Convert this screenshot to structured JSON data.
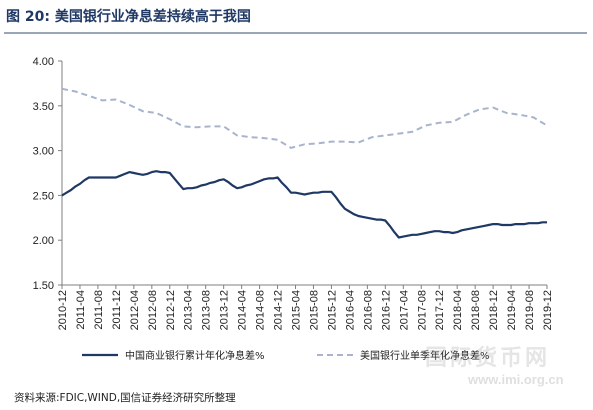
{
  "figure": {
    "title": "图 20:  美国银行业净息差持续高于我国",
    "source": "资料来源:FDIC,WIND,国信证券经济研究所整理",
    "watermark_text": "国际货币网",
    "watermark_url": "www.imi.org.cn"
  },
  "colors": {
    "china_series": "#1f3864",
    "us_series": "#a7b4cc",
    "title": "#1f3864"
  },
  "chart_data": {
    "type": "line",
    "title": "",
    "xlabel": "",
    "ylabel": "",
    "ylim": [
      1.5,
      4.0
    ],
    "yticks": [
      "1.50",
      "2.00",
      "2.50",
      "3.00",
      "3.50",
      "4.00"
    ],
    "x": [
      "2010-12",
      "2011-04",
      "2011-08",
      "2011-12",
      "2012-04",
      "2012-08",
      "2012-12",
      "2013-04",
      "2013-08",
      "2013-12",
      "2014-04",
      "2014-08",
      "2014-12",
      "2015-04",
      "2015-08",
      "2015-12",
      "2016-04",
      "2016-08",
      "2016-12",
      "2017-04",
      "2017-08",
      "2017-12",
      "2018-04",
      "2018-08",
      "2018-12",
      "2019-04",
      "2019-08",
      "2019-12"
    ],
    "legend_position": "bottom",
    "grid": false,
    "series": [
      {
        "name": "中国商业银行累计年化净息差%",
        "style": "solid",
        "points": [
          [
            "2010-12",
            2.5
          ],
          [
            "2011-01",
            2.53
          ],
          [
            "2011-02",
            2.56
          ],
          [
            "2011-03",
            2.6
          ],
          [
            "2011-04",
            2.63
          ],
          [
            "2011-05",
            2.67
          ],
          [
            "2011-06",
            2.7
          ],
          [
            "2011-07",
            2.7
          ],
          [
            "2011-08",
            2.7
          ],
          [
            "2011-09",
            2.7
          ],
          [
            "2011-10",
            2.7
          ],
          [
            "2011-11",
            2.7
          ],
          [
            "2011-12",
            2.7
          ],
          [
            "2012-01",
            2.72
          ],
          [
            "2012-02",
            2.74
          ],
          [
            "2012-03",
            2.76
          ],
          [
            "2012-04",
            2.75
          ],
          [
            "2012-05",
            2.74
          ],
          [
            "2012-06",
            2.73
          ],
          [
            "2012-07",
            2.74
          ],
          [
            "2012-08",
            2.76
          ],
          [
            "2012-09",
            2.77
          ],
          [
            "2012-10",
            2.76
          ],
          [
            "2012-11",
            2.76
          ],
          [
            "2012-12",
            2.75
          ],
          [
            "2013-01",
            2.69
          ],
          [
            "2013-02",
            2.63
          ],
          [
            "2013-03",
            2.57
          ],
          [
            "2013-04",
            2.58
          ],
          [
            "2013-05",
            2.58
          ],
          [
            "2013-06",
            2.59
          ],
          [
            "2013-07",
            2.61
          ],
          [
            "2013-08",
            2.62
          ],
          [
            "2013-09",
            2.64
          ],
          [
            "2013-10",
            2.65
          ],
          [
            "2013-11",
            2.67
          ],
          [
            "2013-12",
            2.68
          ],
          [
            "2014-01",
            2.65
          ],
          [
            "2014-02",
            2.61
          ],
          [
            "2014-03",
            2.58
          ],
          [
            "2014-04",
            2.59
          ],
          [
            "2014-05",
            2.61
          ],
          [
            "2014-06",
            2.62
          ],
          [
            "2014-07",
            2.64
          ],
          [
            "2014-08",
            2.66
          ],
          [
            "2014-09",
            2.68
          ],
          [
            "2014-10",
            2.69
          ],
          [
            "2014-11",
            2.69
          ],
          [
            "2014-12",
            2.7
          ],
          [
            "2015-01",
            2.64
          ],
          [
            "2015-02",
            2.59
          ],
          [
            "2015-03",
            2.53
          ],
          [
            "2015-04",
            2.53
          ],
          [
            "2015-05",
            2.52
          ],
          [
            "2015-06",
            2.51
          ],
          [
            "2015-07",
            2.52
          ],
          [
            "2015-08",
            2.53
          ],
          [
            "2015-09",
            2.53
          ],
          [
            "2015-10",
            2.54
          ],
          [
            "2015-11",
            2.54
          ],
          [
            "2015-12",
            2.54
          ],
          [
            "2016-01",
            2.48
          ],
          [
            "2016-02",
            2.41
          ],
          [
            "2016-03",
            2.35
          ],
          [
            "2016-04",
            2.32
          ],
          [
            "2016-05",
            2.29
          ],
          [
            "2016-06",
            2.27
          ],
          [
            "2016-07",
            2.26
          ],
          [
            "2016-08",
            2.25
          ],
          [
            "2016-09",
            2.24
          ],
          [
            "2016-10",
            2.23
          ],
          [
            "2016-11",
            2.23
          ],
          [
            "2016-12",
            2.22
          ],
          [
            "2017-01",
            2.16
          ],
          [
            "2017-02",
            2.09
          ],
          [
            "2017-03",
            2.03
          ],
          [
            "2017-04",
            2.04
          ],
          [
            "2017-05",
            2.05
          ],
          [
            "2017-06",
            2.06
          ],
          [
            "2017-07",
            2.06
          ],
          [
            "2017-08",
            2.07
          ],
          [
            "2017-09",
            2.08
          ],
          [
            "2017-10",
            2.09
          ],
          [
            "2017-11",
            2.1
          ],
          [
            "2017-12",
            2.1
          ],
          [
            "2018-01",
            2.09
          ],
          [
            "2018-02",
            2.09
          ],
          [
            "2018-03",
            2.08
          ],
          [
            "2018-04",
            2.09
          ],
          [
            "2018-05",
            2.11
          ],
          [
            "2018-06",
            2.12
          ],
          [
            "2018-07",
            2.13
          ],
          [
            "2018-08",
            2.14
          ],
          [
            "2018-09",
            2.15
          ],
          [
            "2018-10",
            2.16
          ],
          [
            "2018-11",
            2.17
          ],
          [
            "2018-12",
            2.18
          ],
          [
            "2019-01",
            2.18
          ],
          [
            "2019-02",
            2.17
          ],
          [
            "2019-03",
            2.17
          ],
          [
            "2019-04",
            2.17
          ],
          [
            "2019-05",
            2.18
          ],
          [
            "2019-06",
            2.18
          ],
          [
            "2019-07",
            2.18
          ],
          [
            "2019-08",
            2.19
          ],
          [
            "2019-09",
            2.19
          ],
          [
            "2019-10",
            2.19
          ],
          [
            "2019-11",
            2.2
          ],
          [
            "2019-12",
            2.2
          ]
        ]
      },
      {
        "name": "美国银行业单季年化净息差%",
        "style": "dashed",
        "points": [
          [
            "2010-12",
            3.69
          ],
          [
            "2011-03",
            3.66
          ],
          [
            "2011-06",
            3.61
          ],
          [
            "2011-09",
            3.56
          ],
          [
            "2011-12",
            3.57
          ],
          [
            "2012-03",
            3.51
          ],
          [
            "2012-06",
            3.44
          ],
          [
            "2012-09",
            3.42
          ],
          [
            "2012-12",
            3.35
          ],
          [
            "2013-03",
            3.27
          ],
          [
            "2013-06",
            3.26
          ],
          [
            "2013-09",
            3.27
          ],
          [
            "2013-12",
            3.27
          ],
          [
            "2014-03",
            3.17
          ],
          [
            "2014-06",
            3.15
          ],
          [
            "2014-09",
            3.14
          ],
          [
            "2014-12",
            3.12
          ],
          [
            "2015-03",
            3.03
          ],
          [
            "2015-06",
            3.07
          ],
          [
            "2015-09",
            3.08
          ],
          [
            "2015-12",
            3.1
          ],
          [
            "2016-03",
            3.1
          ],
          [
            "2016-06",
            3.09
          ],
          [
            "2016-09",
            3.15
          ],
          [
            "2016-12",
            3.17
          ],
          [
            "2017-03",
            3.19
          ],
          [
            "2017-06",
            3.21
          ],
          [
            "2017-09",
            3.28
          ],
          [
            "2017-12",
            3.31
          ],
          [
            "2018-03",
            3.32
          ],
          [
            "2018-06",
            3.4
          ],
          [
            "2018-09",
            3.46
          ],
          [
            "2018-12",
            3.48
          ],
          [
            "2019-03",
            3.42
          ],
          [
            "2019-06",
            3.4
          ],
          [
            "2019-09",
            3.37
          ],
          [
            "2019-12",
            3.28
          ]
        ]
      }
    ]
  }
}
